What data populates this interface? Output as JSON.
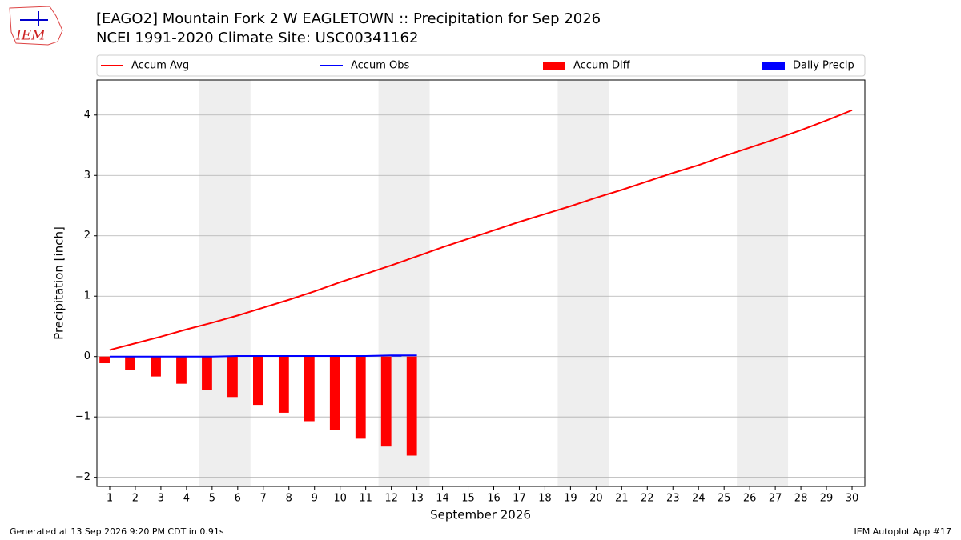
{
  "logo_text": "IEM",
  "footer": {
    "left": "Generated at 13 Sep 2026 9:20 PM CDT in 0.91s",
    "right": "IEM Autoplot App #17"
  },
  "chart_data": {
    "type": "line",
    "title": "[EAGO2] Mountain Fork 2 W EAGLETOWN :: Precipitation for Sep 2026",
    "subtitle": "NCEI 1991-2020 Climate Site: USC00341162",
    "x_label": "September 2026",
    "y_label": "Precipitation [inch]",
    "x": [
      1,
      2,
      3,
      4,
      5,
      6,
      7,
      8,
      9,
      10,
      11,
      12,
      13,
      14,
      15,
      16,
      17,
      18,
      19,
      20,
      21,
      22,
      23,
      24,
      25,
      26,
      27,
      28,
      29,
      30
    ],
    "xlim": [
      0.5,
      30.5
    ],
    "xticks": [
      1,
      2,
      3,
      4,
      5,
      6,
      7,
      8,
      9,
      10,
      11,
      12,
      13,
      14,
      15,
      16,
      17,
      18,
      19,
      20,
      21,
      22,
      23,
      24,
      25,
      26,
      27,
      28,
      29,
      30
    ],
    "ylim": [
      -2.15,
      4.58
    ],
    "yticks": [
      {
        "value": -2,
        "label": "−2"
      },
      {
        "value": -1,
        "label": "−1"
      },
      0,
      1,
      2,
      3,
      4
    ],
    "grid": true,
    "shaded_spans": [
      [
        4.5,
        6.5
      ],
      [
        11.5,
        13.5
      ],
      [
        18.5,
        20.5
      ],
      [
        25.5,
        27.5
      ]
    ],
    "shade_color": "#eeeeee",
    "series": [
      {
        "name": "Accum Avg",
        "color": "#ff0000",
        "kind": "line",
        "values": [
          0.11,
          0.22,
          0.33,
          0.45,
          0.56,
          0.68,
          0.81,
          0.94,
          1.08,
          1.23,
          1.37,
          1.51,
          1.66,
          1.81,
          1.95,
          2.09,
          2.23,
          2.36,
          2.49,
          2.63,
          2.76,
          2.9,
          3.04,
          3.17,
          3.32,
          3.46,
          3.6,
          3.75,
          3.91,
          4.08
        ]
      },
      {
        "name": "Accum Obs",
        "color": "#0000ff",
        "kind": "line",
        "values": [
          0,
          0,
          0,
          0,
          0,
          0.01,
          0.01,
          0.01,
          0.01,
          0.01,
          0.01,
          0.02,
          0.02,
          null,
          null,
          null,
          null,
          null,
          null,
          null,
          null,
          null,
          null,
          null,
          null,
          null,
          null,
          null,
          null,
          null
        ]
      },
      {
        "name": "Accum Diff",
        "color": "#ff0000",
        "kind": "bar",
        "values": [
          -0.11,
          -0.22,
          -0.33,
          -0.45,
          -0.56,
          -0.67,
          -0.8,
          -0.93,
          -1.07,
          -1.22,
          -1.36,
          -1.49,
          -1.64,
          null,
          null,
          null,
          null,
          null,
          null,
          null,
          null,
          null,
          null,
          null,
          null,
          null,
          null,
          null,
          null,
          null
        ]
      },
      {
        "name": "Daily Precip",
        "color": "#0000ff",
        "kind": "bar",
        "values": [
          0,
          0,
          0,
          0,
          0,
          0.01,
          0,
          0,
          0,
          0,
          0,
          0.01,
          0,
          null,
          null,
          null,
          null,
          null,
          null,
          null,
          null,
          null,
          null,
          null,
          null,
          null,
          null,
          null,
          null,
          null
        ]
      }
    ]
  }
}
